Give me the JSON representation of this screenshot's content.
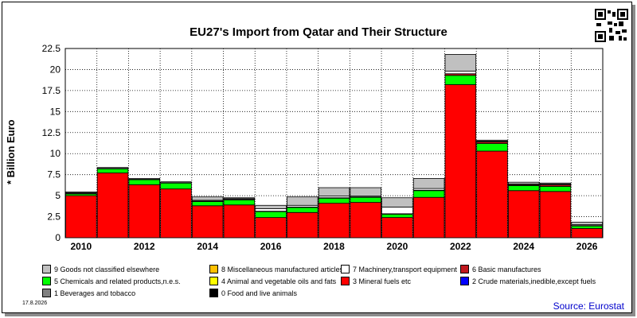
{
  "chart_data": {
    "type": "bar",
    "stacked": true,
    "title": "EU27's Import from Qatar and Their Structure",
    "ylabel": "* Billion Euro",
    "ylim": [
      0,
      22.5
    ],
    "yticks": [
      "0",
      "2.5",
      "5",
      "7.5",
      "10",
      "12.5",
      "15",
      "17.5",
      "20",
      "22.5"
    ],
    "ytick_values": [
      0,
      2.5,
      5,
      7.5,
      10,
      12.5,
      15,
      17.5,
      20,
      22.5
    ],
    "categories": [
      "2010",
      "2011",
      "2012",
      "2013",
      "2014",
      "2015",
      "2016",
      "2017",
      "2018",
      "2019",
      "2020",
      "2021",
      "2022",
      "2023",
      "2024",
      "2025",
      "2026"
    ],
    "xtick_labels": [
      "2010",
      "2012",
      "2014",
      "2016",
      "2018",
      "2020",
      "2022",
      "2024",
      "2026"
    ],
    "grid": true,
    "series": [
      {
        "name": "3 Mineral fuels etc",
        "color": "#ff0000",
        "values": [
          5.0,
          7.7,
          6.3,
          5.8,
          3.8,
          3.9,
          2.4,
          3.0,
          4.1,
          4.2,
          2.4,
          4.8,
          18.2,
          10.3,
          5.6,
          5.5,
          1.1
        ]
      },
      {
        "name": "5 Chemicals and related products,n.e.s.",
        "color": "#00ff00",
        "values": [
          0.2,
          0.5,
          0.6,
          0.7,
          0.5,
          0.6,
          0.7,
          0.6,
          0.6,
          0.6,
          0.4,
          0.8,
          1.1,
          0.9,
          0.6,
          0.6,
          0.3
        ]
      },
      {
        "name": "6 Basic manufactures",
        "color": "#c0181e",
        "values": [
          0.05,
          0.05,
          0.05,
          0.05,
          0.05,
          0.05,
          0.05,
          0.05,
          0.05,
          0.05,
          0.05,
          0.05,
          0.2,
          0.2,
          0.1,
          0.2,
          0.05
        ]
      },
      {
        "name": "7 Machinery,transport equipment",
        "color": "#ffffff",
        "values": [
          0.1,
          0.1,
          0.1,
          0.1,
          0.1,
          0.1,
          0.3,
          0.2,
          0.2,
          0.1,
          0.8,
          0.2,
          0.3,
          0.1,
          0.1,
          0.1,
          0.1
        ]
      },
      {
        "name": "9 Goods not classified elsewhere",
        "color": "#c0c0c0",
        "values": [
          0.1,
          0.0,
          0.0,
          0.0,
          0.4,
          0.1,
          0.4,
          1.0,
          1.0,
          1.0,
          1.1,
          1.2,
          2.0,
          0.1,
          0.2,
          0.1,
          0.3
        ]
      },
      {
        "name": "8 Miscellaneous manufactured articles",
        "color": "#ffc000",
        "values": [
          0,
          0,
          0,
          0,
          0,
          0,
          0,
          0,
          0,
          0,
          0,
          0,
          0,
          0,
          0,
          0,
          0
        ]
      },
      {
        "name": "4 Animal and vegetable oils and fats",
        "color": "#ffff00",
        "values": [
          0,
          0,
          0,
          0,
          0,
          0,
          0,
          0,
          0,
          0,
          0,
          0,
          0,
          0,
          0,
          0,
          0
        ]
      },
      {
        "name": "2 Crude materials,inedible,except fuels",
        "color": "#0000ff",
        "values": [
          0,
          0,
          0,
          0,
          0,
          0,
          0,
          0,
          0,
          0,
          0,
          0,
          0,
          0,
          0,
          0,
          0
        ]
      },
      {
        "name": "1 Beverages and tobacco",
        "color": "#808080",
        "values": [
          0,
          0,
          0,
          0,
          0,
          0,
          0,
          0,
          0,
          0,
          0,
          0,
          0,
          0,
          0,
          0,
          0
        ]
      },
      {
        "name": "0 Food and live animals",
        "color": "#000000",
        "values": [
          0,
          0,
          0,
          0,
          0,
          0,
          0,
          0,
          0,
          0,
          0,
          0,
          0,
          0,
          0,
          0,
          0
        ]
      }
    ],
    "legend": [
      {
        "label": "9 Goods not classified elsewhere",
        "color": "#c0c0c0"
      },
      {
        "label": "8 Miscellaneous manufactured articles",
        "color": "#ffc000"
      },
      {
        "label": "7 Machinery,transport equipment",
        "color": "#ffffff"
      },
      {
        "label": "6 Basic manufactures",
        "color": "#c0181e"
      },
      {
        "label": "5 Chemicals and related products,n.e.s.",
        "color": "#00ff00"
      },
      {
        "label": "4 Animal and vegetable oils and fats",
        "color": "#ffff00"
      },
      {
        "label": "3 Mineral fuels etc",
        "color": "#ff0000"
      },
      {
        "label": "2 Crude materials,inedible,except fuels",
        "color": "#0000ff"
      },
      {
        "label": "1 Beverages and tobacco",
        "color": "#808080"
      },
      {
        "label": "0 Food and live animals",
        "color": "#000000"
      }
    ],
    "legend_placement": "bottom"
  },
  "footer": {
    "date": "17.8.2026",
    "source": "Source: Eurostat"
  }
}
